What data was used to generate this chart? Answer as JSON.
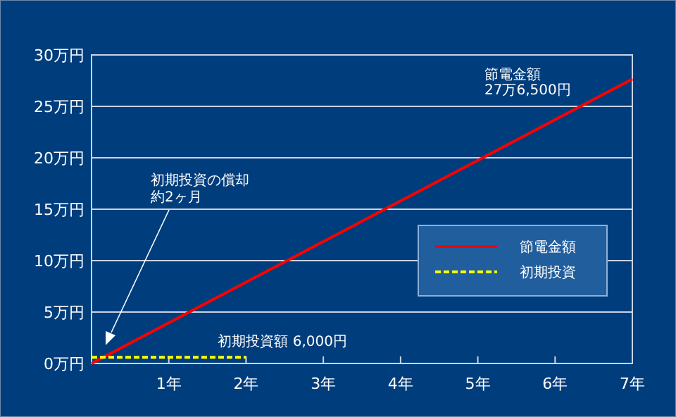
{
  "chart_data": {
    "type": "line",
    "xlim": [
      0,
      7
    ],
    "xticks": [
      {
        "value": 1,
        "label": "1年"
      },
      {
        "value": 2,
        "label": "2年"
      },
      {
        "value": 3,
        "label": "3年"
      },
      {
        "value": 4,
        "label": "4年"
      },
      {
        "value": 5,
        "label": "5年"
      },
      {
        "value": 6,
        "label": "6年"
      },
      {
        "value": 7,
        "label": "7年"
      }
    ],
    "ylim": [
      0,
      30
    ],
    "yticks": [
      {
        "value": 0,
        "label": "0万円"
      },
      {
        "value": 5,
        "label": "5万円"
      },
      {
        "value": 10,
        "label": "10万円"
      },
      {
        "value": 15,
        "label": "15万円"
      },
      {
        "value": 20,
        "label": "20万円"
      },
      {
        "value": 25,
        "label": "25万円"
      },
      {
        "value": 30,
        "label": "30万円"
      }
    ],
    "grid": "y",
    "legend": "right",
    "marker": "none",
    "series": [
      {
        "name": "節電金額",
        "color": "#ff0000",
        "x": [
          0,
          7
        ],
        "values": [
          0,
          27.65
        ],
        "line_style": "solid"
      },
      {
        "name": "初期投資",
        "color": "#ffff00",
        "x": [
          0,
          2
        ],
        "values": [
          0.6,
          0.6
        ],
        "line_style": "dashed"
      }
    ],
    "annotations": [
      "節電金額\n27万6,500円",
      "初期投資の償却",
      "約2ヶ月",
      {
        "text": "初期投資額 6,000円",
        "x": 2,
        "y": 0.6
      }
    ]
  }
}
